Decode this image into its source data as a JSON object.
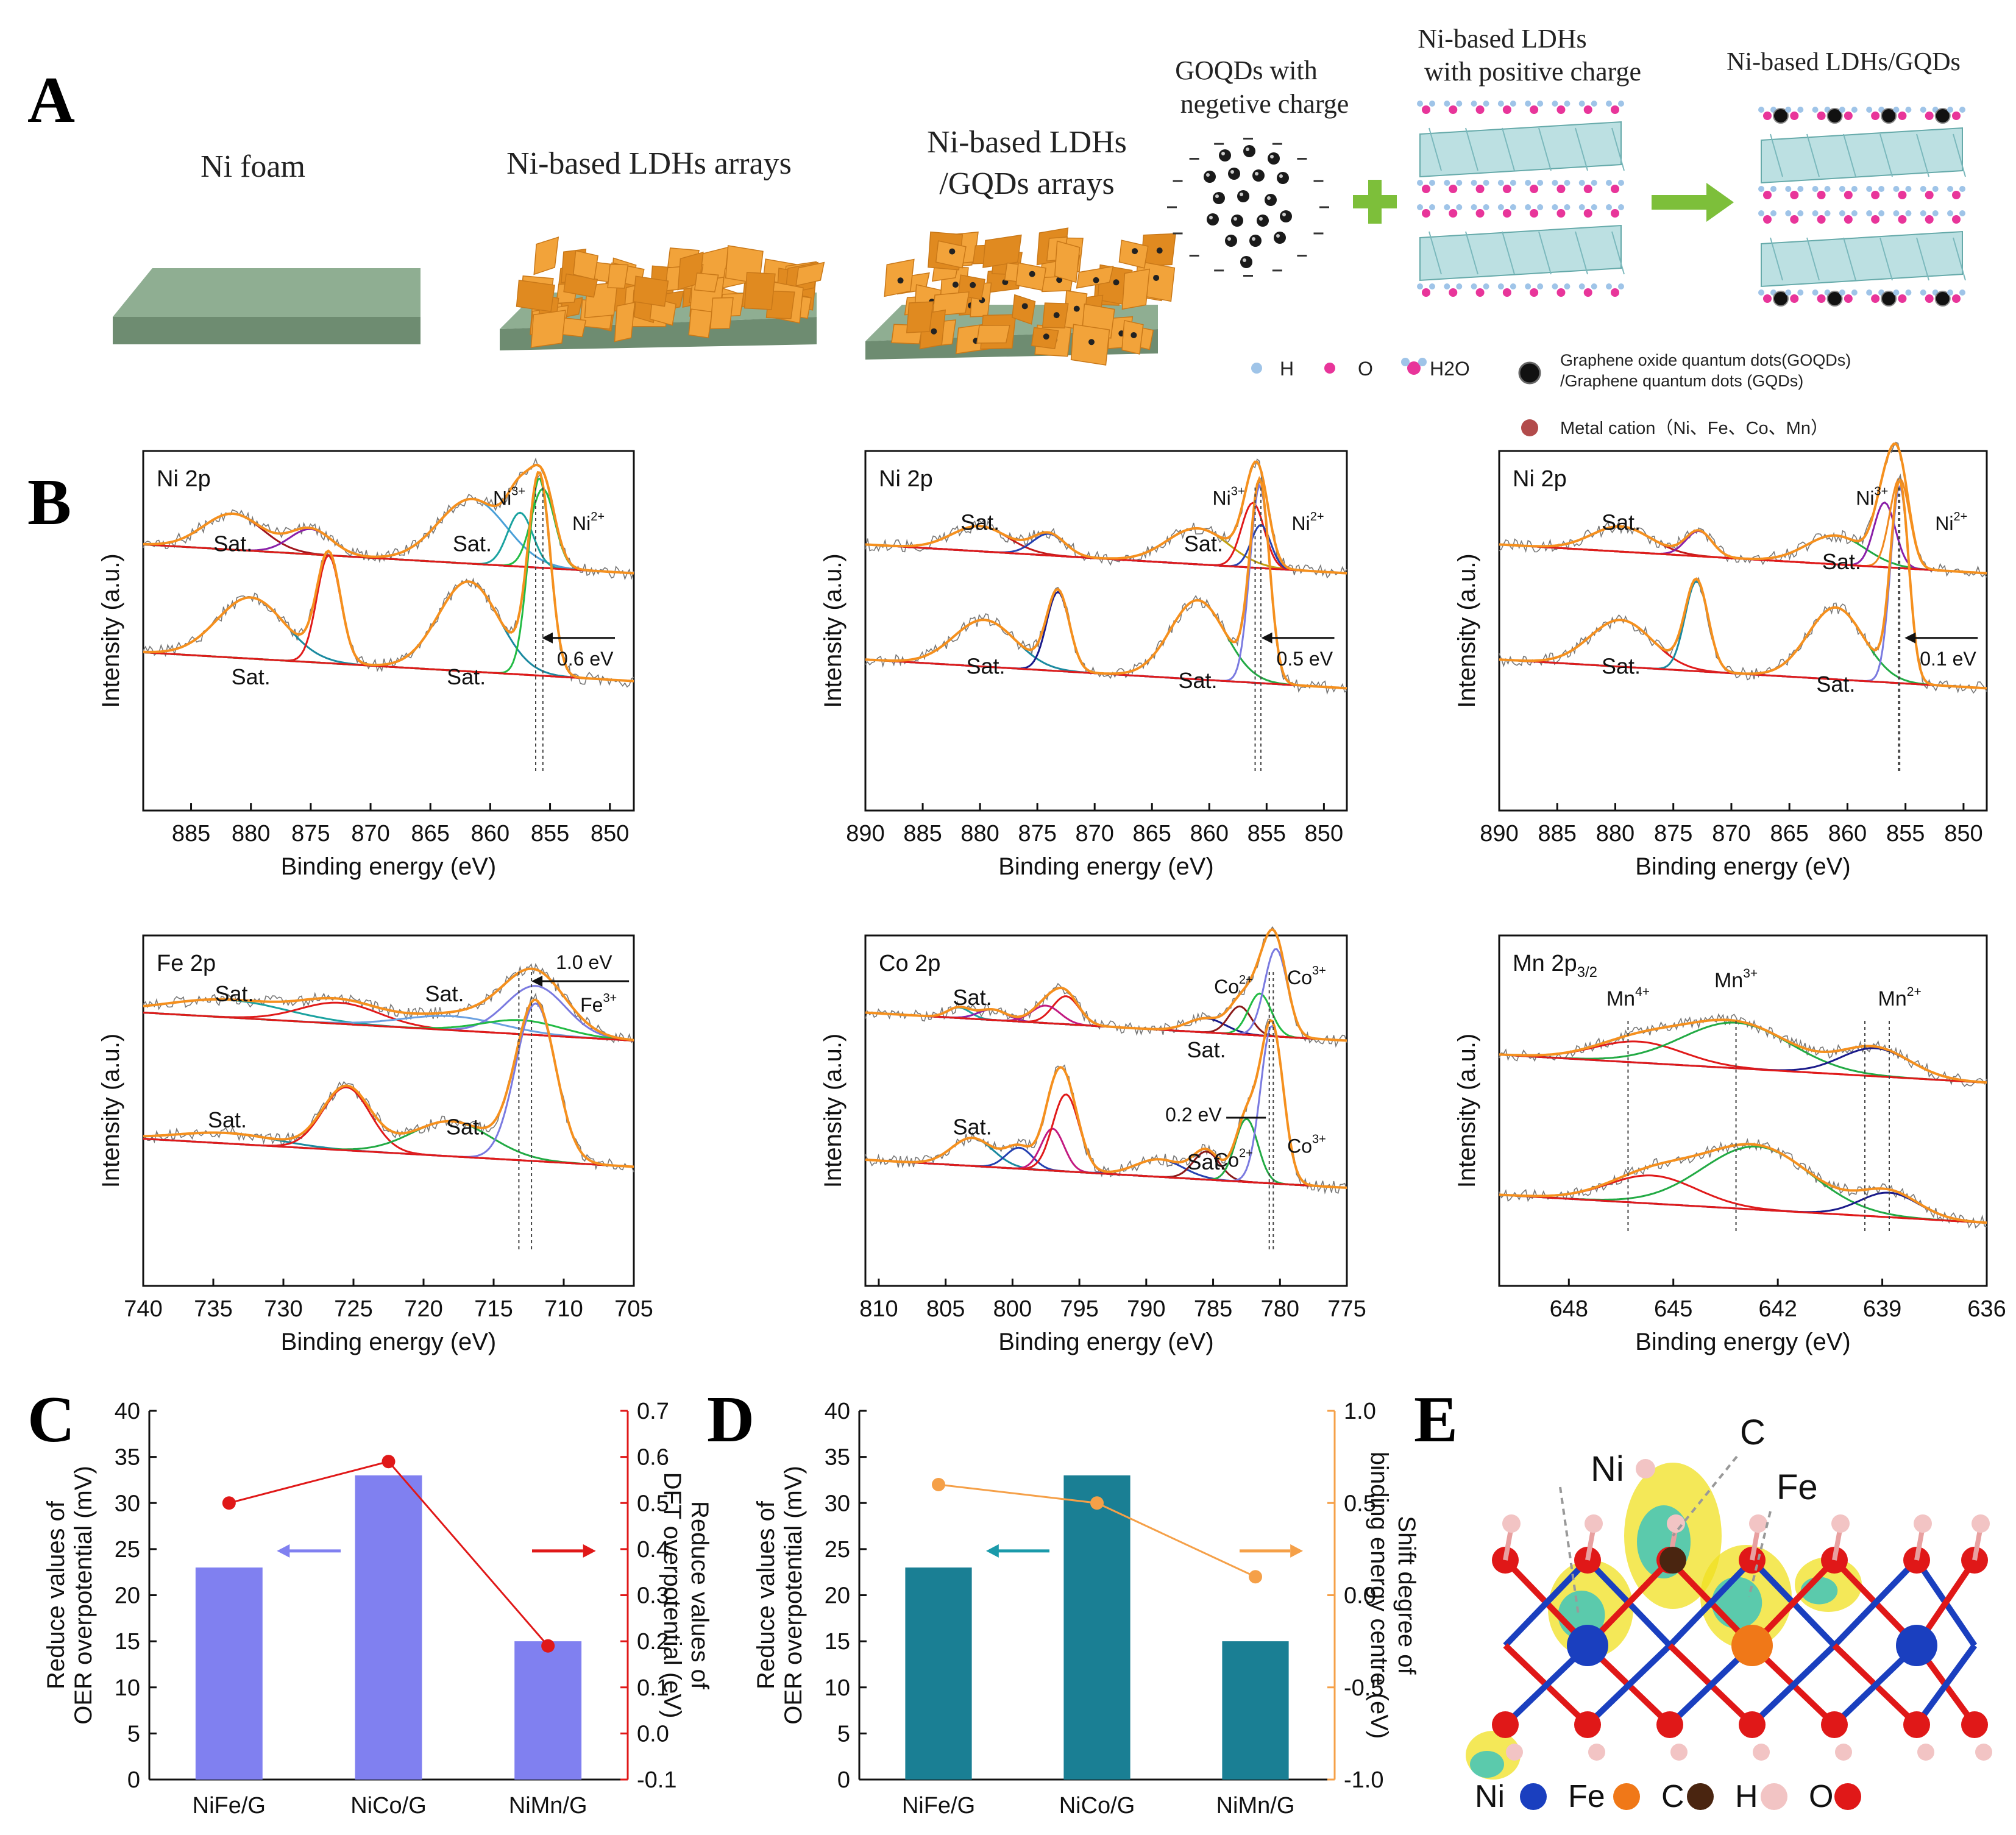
{
  "panelA": {
    "letter": "A",
    "stages": [
      "Ni foam",
      "Ni-based LDHs arrays",
      "Ni-based LDHs",
      "/GQDs arrays"
    ],
    "goqds_label": [
      "GOQDs with",
      "negetive charge"
    ],
    "ldh_label": [
      "Ni-based LDHs",
      "with positive charge"
    ],
    "product_label": "Ni-based LDHs/GQDs",
    "legend": {
      "h": "H",
      "o": "O",
      "h2o": "H2O",
      "gqd_line1": "Graphene oxide quantum dots(GOQDs)",
      "gqd_line2": "/Graphene quantum dots (GQDs)",
      "metal": "Metal cation（Ni、Fe、Co、Mn）"
    },
    "colors": {
      "substrate": "#7e9c80",
      "ldh": "#f2a33a",
      "dot": "#222222",
      "arrow": "#7dbf3a",
      "oxygen": "#e8359a",
      "hydrogen": "#9fc4e8",
      "metal": "#b24b4b"
    }
  },
  "panelB": {
    "letter": "B",
    "ylabel": "Intensity (a.u.)",
    "xlabel": "Binding energy (eV)",
    "sat": "Sat.",
    "ni_title": "Ni 2p",
    "ni3": "Ni3+",
    "ni2": "Ni2+",
    "shifts": [
      "0.6 eV",
      "0.5 eV",
      "0.1 eV"
    ],
    "fe_title": "Fe 2p",
    "fe_shift": "1.0 eV",
    "fe3": "Fe3+",
    "co_title": "Co 2p",
    "co2": "Co2+",
    "co3": "Co3+",
    "co_shift": "0.2 eV",
    "mn_title": "Mn 2p3/2",
    "mn4": "Mn4+",
    "mn3": "Mn3+",
    "mn2": "Mn2+",
    "tick_sets": {
      "ni1": [
        "885",
        "880",
        "875",
        "870",
        "865",
        "860",
        "855",
        "850"
      ],
      "ni2": [
        "890",
        "885",
        "880",
        "875",
        "870",
        "865",
        "860",
        "855",
        "850"
      ],
      "ni3": [
        "890",
        "885",
        "880",
        "875",
        "870",
        "865",
        "860",
        "855",
        "850"
      ],
      "fe": [
        "740",
        "735",
        "730",
        "725",
        "720",
        "715",
        "710",
        "705"
      ],
      "co": [
        "810",
        "805",
        "800",
        "795",
        "790",
        "785",
        "780",
        "775"
      ],
      "mn": [
        "648",
        "645",
        "642",
        "639",
        "636"
      ]
    }
  },
  "panelC": {
    "letter": "C"
  },
  "panelD": {
    "letter": "D"
  },
  "panelE": {
    "letter": "E",
    "atom_labels": [
      "Ni",
      "C",
      "Fe"
    ],
    "legend": [
      {
        "name": "Ni",
        "color": "#1a3fbf"
      },
      {
        "name": "Fe",
        "color": "#f07818"
      },
      {
        "name": "C",
        "color": "#4a2510"
      },
      {
        "name": "H",
        "color": "#f2c4c4"
      },
      {
        "name": "O",
        "color": "#e01818"
      }
    ]
  },
  "chart_data": [
    {
      "id": "C",
      "type": "bar",
      "categories": [
        "NiFe/G",
        "NiCo/G",
        "NiMn/G"
      ],
      "series": [
        {
          "name": "Reduce values of OER overpotential (mV)",
          "axis": "left",
          "kind": "bar",
          "values": [
            23,
            33,
            15
          ],
          "color": "#8080f0"
        },
        {
          "name": "Reduce values of DFT overpotential (eV)",
          "axis": "right",
          "kind": "line",
          "values": [
            0.5,
            0.59,
            0.19
          ],
          "color": "#e01818"
        }
      ],
      "ylabel_left": [
        "Reduce values of",
        "OER overpotential (mV)"
      ],
      "ylabel_right": [
        "Reduce values of",
        "DFT overpotential (eV)"
      ],
      "ylim_left": [
        0,
        40
      ],
      "ylim_right": [
        -0.1,
        0.7
      ],
      "yticks_left": [
        "0",
        "5",
        "10",
        "15",
        "20",
        "25",
        "30",
        "35",
        "40"
      ],
      "yticks_right": [
        "-0.1",
        "0.0",
        "0.1",
        "0.2",
        "0.3",
        "0.4",
        "0.5",
        "0.6",
        "0.7"
      ]
    },
    {
      "id": "D",
      "type": "bar",
      "categories": [
        "NiFe/G",
        "NiCo/G",
        "NiMn/G"
      ],
      "series": [
        {
          "name": "Reduce values of OER overpotential (mV)",
          "axis": "left",
          "kind": "bar",
          "values": [
            23,
            33,
            15
          ],
          "color": "#1a7f94"
        },
        {
          "name": "Shift degree of binding energy centre (eV)",
          "axis": "right",
          "kind": "line",
          "values": [
            0.6,
            0.5,
            0.1
          ],
          "color": "#f5a048"
        }
      ],
      "ylabel_left": [
        "Reduce values of",
        "OER overpotential (mV)"
      ],
      "ylabel_right": [
        "Shift degree of",
        "binding energy centre (eV)"
      ],
      "ylim_left": [
        0,
        40
      ],
      "ylim_right": [
        -1.0,
        1.0
      ],
      "yticks_left": [
        "0",
        "5",
        "10",
        "15",
        "20",
        "25",
        "30",
        "35",
        "40"
      ],
      "yticks_right": [
        "-1.0",
        "-0.5",
        "0.0",
        "0.5",
        "1.0"
      ]
    }
  ]
}
